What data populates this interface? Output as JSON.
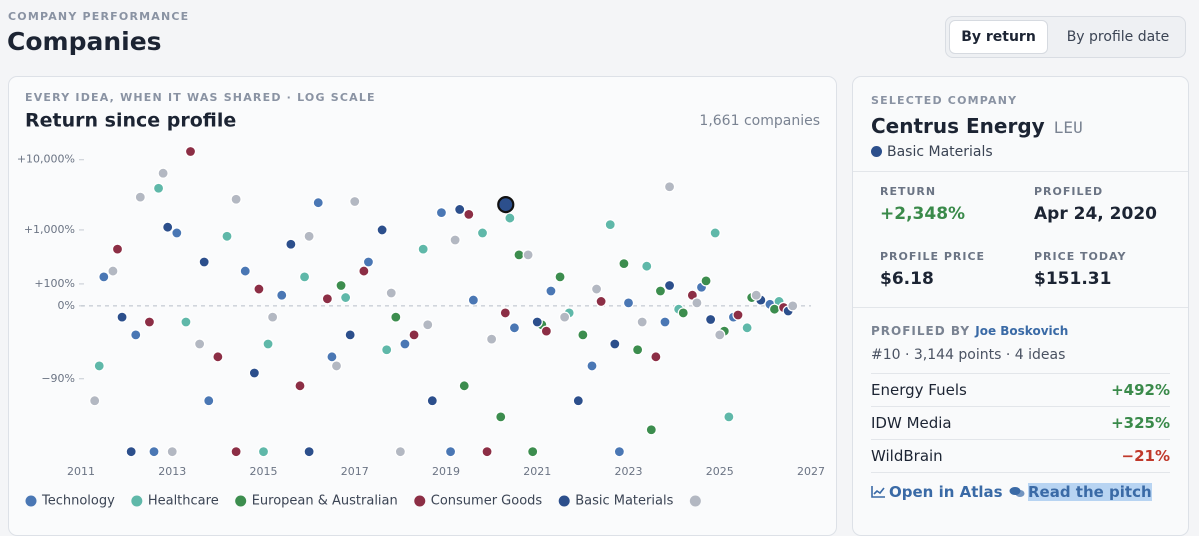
{
  "header": {
    "eyebrow": "COMPANY PERFORMANCE",
    "title": "Companies"
  },
  "tabs": [
    "By return",
    "By profile date"
  ],
  "chart_data": {
    "type": "scatter",
    "subtitle": "EVERY IDEA, WHEN IT WAS SHARED · LOG SCALE",
    "title": "Return since profile",
    "annotation": "1,661 companies",
    "log_scale": true,
    "xlim": [
      2011,
      2027
    ],
    "xticks": [
      2011,
      2013,
      2015,
      2017,
      2019,
      2021,
      2023,
      2025,
      2027
    ],
    "ylim": [
      -99.1,
      15000
    ],
    "yticks": [
      {
        "value": 10000,
        "label": "+10,000%"
      },
      {
        "value": 1000,
        "label": "+1,000%"
      },
      {
        "value": 100,
        "label": "+100%"
      },
      {
        "value": 0,
        "label": "0%"
      },
      {
        "value": -90,
        "label": "−90%"
      }
    ],
    "zero_line": true,
    "series": [
      {
        "name": "Technology",
        "color": "#4a77b4",
        "x": [
          2011.5,
          2012.2,
          2013.1,
          2013.8,
          2014.6,
          2015.4,
          2016.2,
          2016.5,
          2017.3,
          2018.1,
          2018.9,
          2019.6,
          2020.5,
          2021.3,
          2022.2,
          2023.0,
          2023.8,
          2024.6,
          2025.3,
          2026.1,
          2012.6,
          2019.1,
          2022.8
        ],
        "values": [
          150,
          -60,
          900,
          -95,
          200,
          40,
          2500,
          -80,
          300,
          -70,
          1800,
          20,
          -50,
          60,
          -85,
          10,
          -40,
          80,
          -30,
          5,
          -99,
          -99,
          -99
        ]
      },
      {
        "name": "Healthcare",
        "color": "#5fb8a9",
        "x": [
          2011.4,
          2012.7,
          2013.3,
          2014.2,
          2015.1,
          2015.9,
          2016.8,
          2017.7,
          2018.5,
          2019.8,
          2020.4,
          2021.7,
          2022.6,
          2023.4,
          2024.1,
          2024.9,
          2025.6,
          2026.3,
          2015.0,
          2025.2
        ],
        "values": [
          -85,
          4000,
          -40,
          800,
          -70,
          150,
          30,
          -75,
          500,
          900,
          1500,
          -20,
          1200,
          250,
          -10,
          900,
          -50,
          15,
          -99,
          -97
        ]
      },
      {
        "name": "European & Australian",
        "color": "#3c8d4e",
        "x": [
          2016.7,
          2017.9,
          2019.4,
          2020.2,
          2020.6,
          2021.1,
          2021.5,
          2022.0,
          2022.9,
          2023.2,
          2023.7,
          2024.2,
          2024.7,
          2025.1,
          2025.7,
          2026.2,
          2023.5,
          2020.9
        ],
        "values": [
          90,
          -30,
          -92,
          -97,
          400,
          -45,
          150,
          -60,
          280,
          -75,
          60,
          -20,
          120,
          -55,
          30,
          -10,
          -98,
          -99
        ]
      },
      {
        "name": "Consumer Goods",
        "color": "#8c2e45",
        "x": [
          2011.8,
          2012.5,
          2013.4,
          2014.0,
          2014.9,
          2015.8,
          2016.4,
          2017.2,
          2018.3,
          2019.5,
          2020.3,
          2021.2,
          2022.4,
          2023.6,
          2024.4,
          2025.4,
          2026.4,
          2014.4,
          2019.9
        ],
        "values": [
          500,
          -40,
          13000,
          -80,
          70,
          -92,
          25,
          200,
          -60,
          1700,
          -20,
          -55,
          15,
          -80,
          40,
          -25,
          -5,
          -99,
          -99
        ]
      },
      {
        "name": "Basic Materials",
        "color": "#2c4f8c",
        "x": [
          2011.9,
          2012.9,
          2013.7,
          2014.8,
          2015.6,
          2016.9,
          2017.6,
          2018.7,
          2019.3,
          2021.0,
          2021.9,
          2022.7,
          2023.9,
          2024.8,
          2025.9,
          2026.5,
          2012.1,
          2016.0
        ],
        "values": [
          -30,
          1100,
          300,
          -88,
          600,
          -60,
          1000,
          -95,
          2000,
          -40,
          -95,
          -70,
          90,
          -35,
          20,
          -15,
          -99,
          -99
        ]
      },
      {
        "name": null,
        "color": "#b3b8c2",
        "x": [
          2011.3,
          2011.7,
          2012.3,
          2012.8,
          2013.6,
          2014.4,
          2015.2,
          2016.0,
          2016.6,
          2017.0,
          2017.8,
          2018.6,
          2019.2,
          2020.0,
          2020.8,
          2021.6,
          2022.3,
          2023.3,
          2023.9,
          2024.5,
          2025.0,
          2025.8,
          2026.6,
          2013.0,
          2018.0
        ],
        "values": [
          -95,
          200,
          3000,
          6500,
          -70,
          2800,
          -30,
          800,
          -85,
          2600,
          50,
          -45,
          700,
          -65,
          400,
          -30,
          70,
          -40,
          4200,
          10,
          -60,
          40,
          0,
          -99,
          -99
        ]
      }
    ],
    "highlight": {
      "x": 2020.31,
      "value": 2348,
      "color": "#2c4f8c"
    }
  },
  "panel": {
    "eyebrow": "SELECTED COMPANY",
    "company": "Centrus Energy",
    "ticker": "LEU",
    "sector": "Basic Materials",
    "stats": [
      {
        "label": "RETURN",
        "value": "+2,348%"
      },
      {
        "label": "PROFILED",
        "value": "Apr 24, 2020"
      },
      {
        "label": "PROFILE PRICE",
        "value": "$6.18"
      },
      {
        "label": "PRICE TODAY",
        "value": "$151.31"
      }
    ],
    "profiled_by_label": "PROFILED BY",
    "profiled_by": "Joe Boskovich",
    "profiler_stats": "#10 · 3,144 points · 4 ideas",
    "ideas": [
      {
        "name": "Energy Fuels",
        "return": "+492%"
      },
      {
        "name": "IDW Media",
        "return": "+325%"
      },
      {
        "name": "WildBrain",
        "return": "−21%"
      }
    ],
    "links": [
      "Open in Atlas",
      "Read the pitch"
    ]
  }
}
